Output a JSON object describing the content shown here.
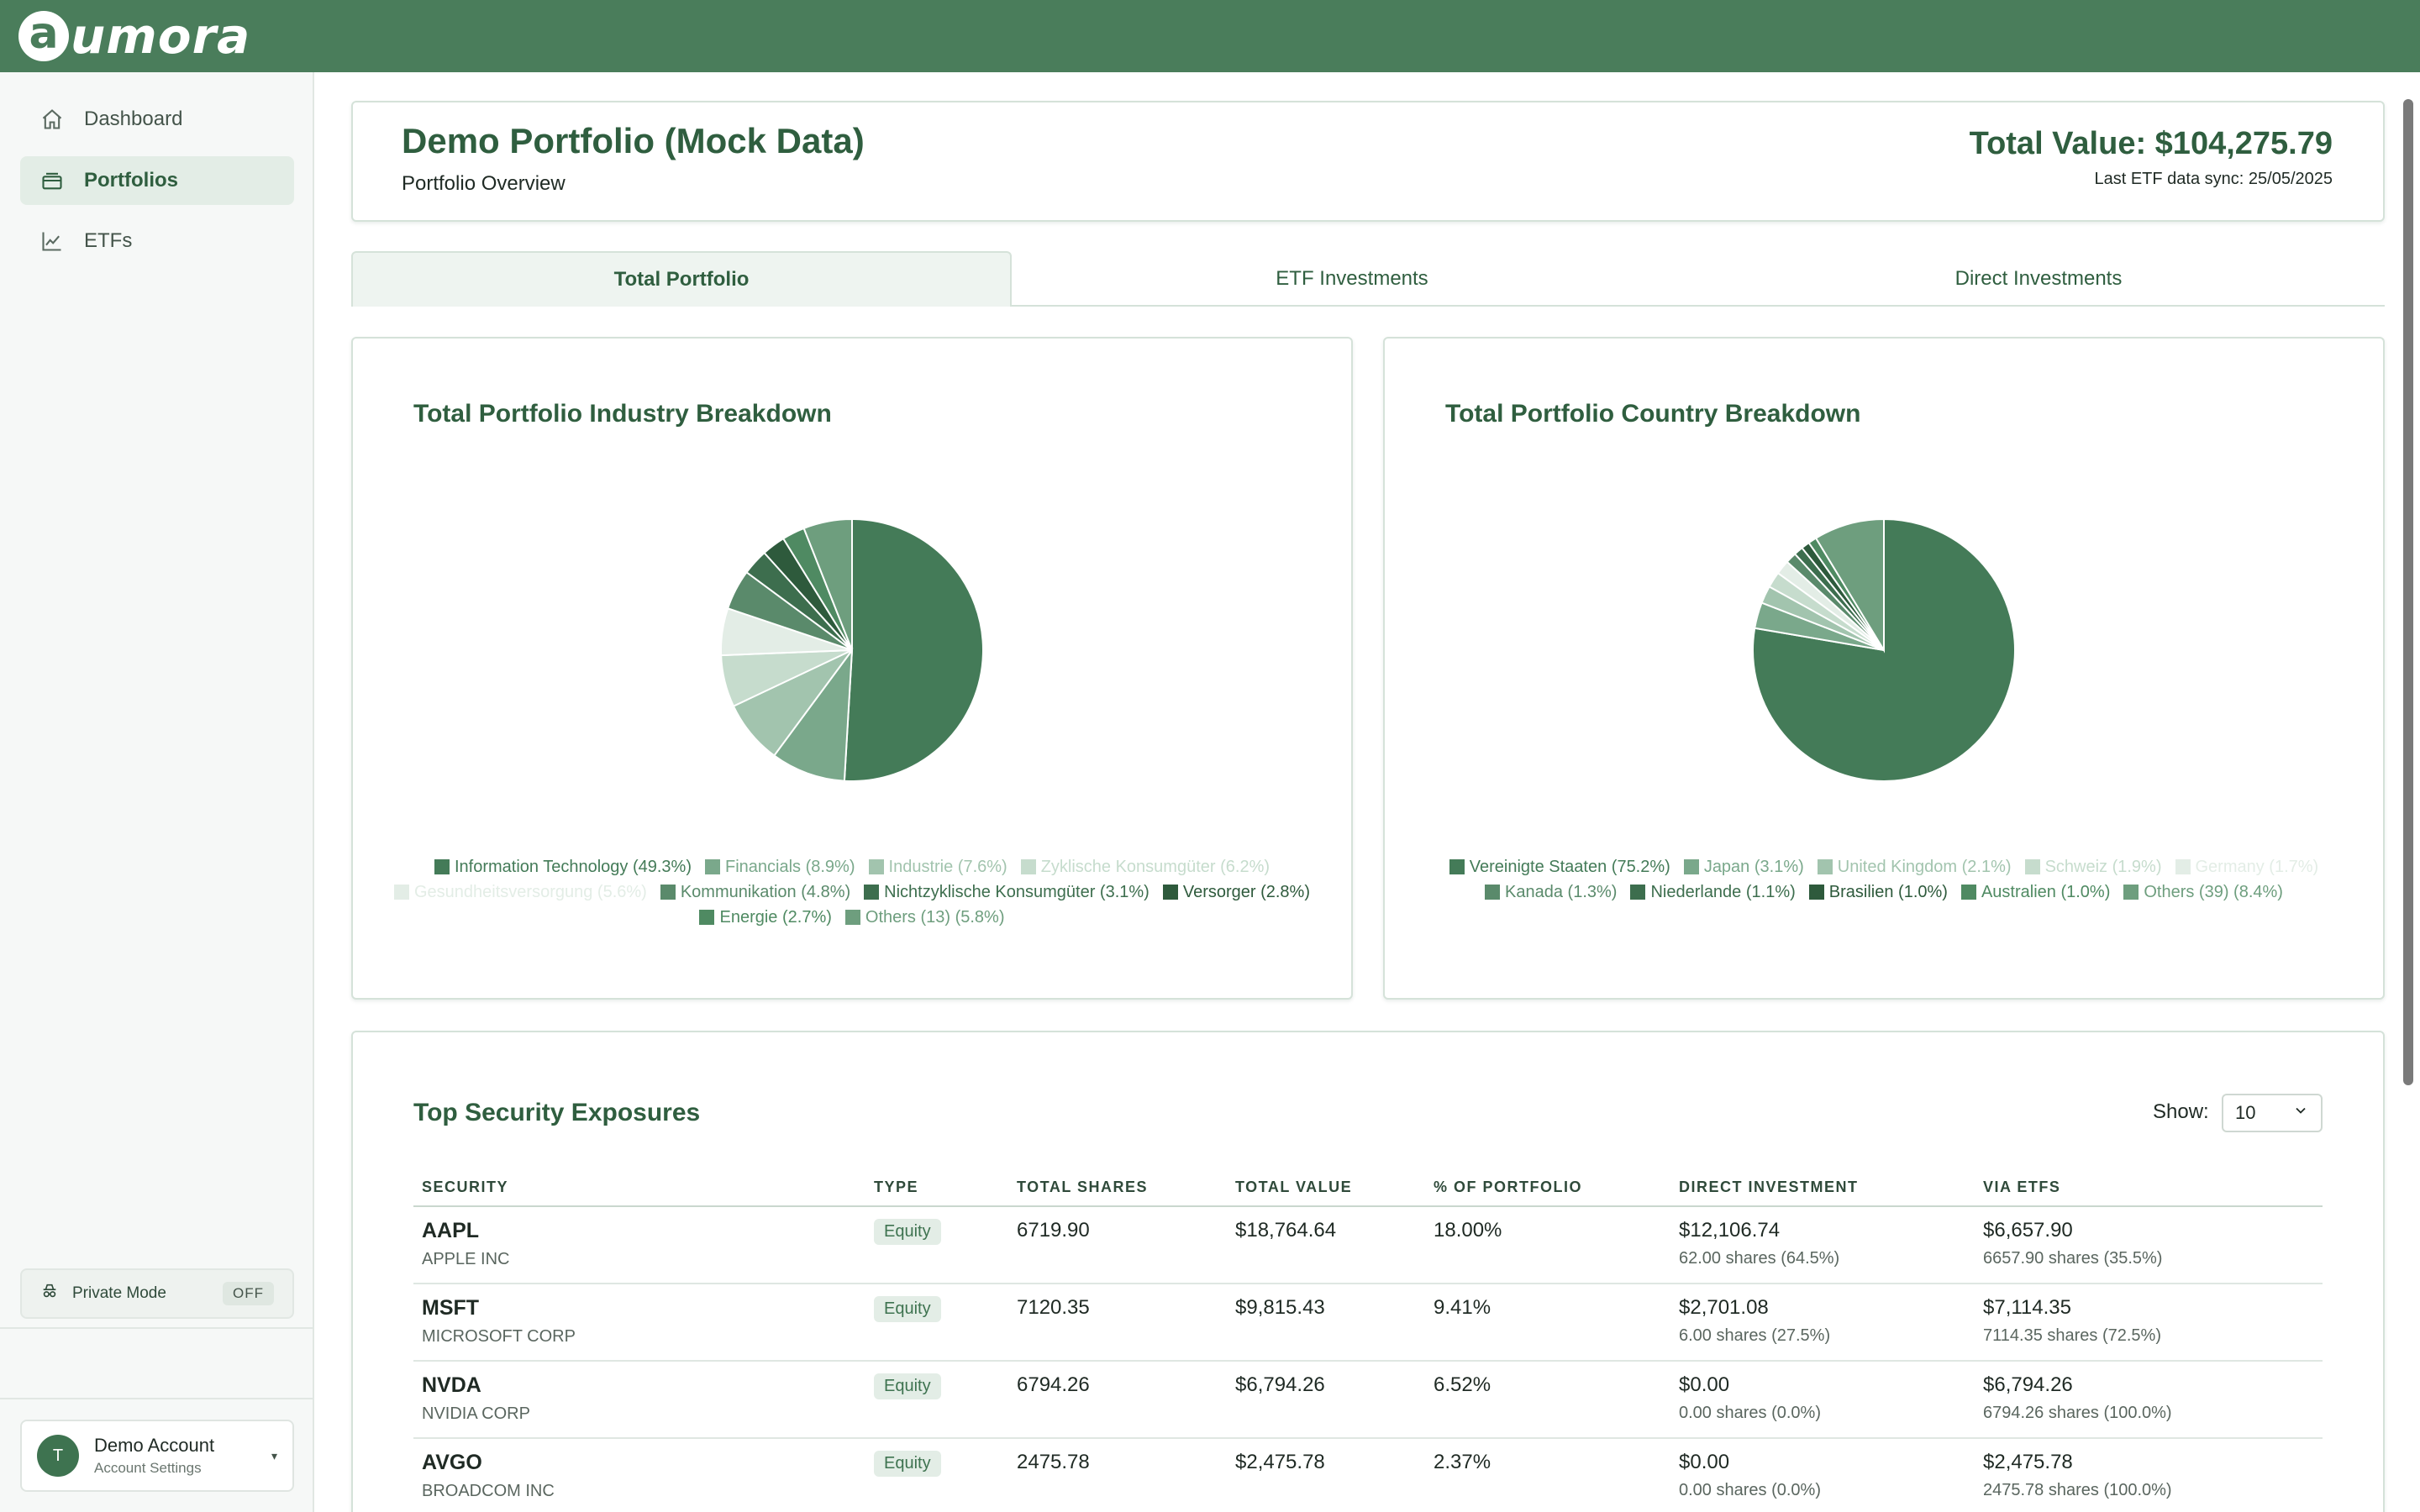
{
  "app": {
    "logo_letter": "a",
    "logo_text": "umora"
  },
  "sidebar": {
    "items": [
      {
        "label": "Dashboard",
        "icon": "home-icon",
        "active": false
      },
      {
        "label": "Portfolios",
        "icon": "briefcase-icon",
        "active": true
      },
      {
        "label": "ETFs",
        "icon": "chart-line-icon",
        "active": false
      }
    ],
    "private_mode": {
      "label": "Private Mode",
      "state": "OFF",
      "icon": "incognito-icon"
    },
    "account": {
      "initial": "T",
      "name": "Demo Account",
      "sub": "Account Settings",
      "caret": "▾"
    }
  },
  "header": {
    "title": "Demo Portfolio (Mock Data)",
    "subtitle": "Portfolio Overview",
    "total_value": "Total Value: $104,275.79",
    "last_sync": "Last ETF data sync: 25/05/2025"
  },
  "tabs": [
    {
      "label": "Total Portfolio",
      "active": true
    },
    {
      "label": "ETF Investments",
      "active": false
    },
    {
      "label": "Direct Investments",
      "active": false
    }
  ],
  "charts": {
    "industry_title": "Total Portfolio Industry Breakdown",
    "country_title": "Total Portfolio Country Breakdown"
  },
  "chart_data": [
    {
      "type": "pie",
      "title": "Total Portfolio Industry Breakdown",
      "labels": [
        "Information Technology (49.3%)",
        "Financials (8.9%)",
        "Industrie (7.6%)",
        "Zyklische Konsumgüter  (6.2%)",
        "Gesundheitsversorgung (5.6%)",
        "Kommunikation (4.8%)",
        "Nichtzyklische Konsumgüter (3.1%)",
        "Versorger (2.8%)",
        "Energie (2.7%)",
        "Others (13) (5.8%)"
      ],
      "values": [
        49.3,
        8.9,
        7.6,
        6.2,
        5.6,
        4.8,
        3.1,
        2.8,
        2.7,
        5.8
      ],
      "colors": [
        "#447b58",
        "#7aa88b",
        "#a2c4ae",
        "#c6dccd",
        "#e3ede6",
        "#5a8a6b",
        "#3d6e4e",
        "#2e5a3c",
        "#4f8a62",
        "#6e9e7e"
      ],
      "legend_placement": "bottom"
    },
    {
      "type": "pie",
      "title": "Total Portfolio Country Breakdown",
      "labels": [
        "Vereinigte Staaten (75.2%)",
        "Japan (3.1%)",
        "United Kingdom (2.1%)",
        "Schweiz (1.9%)",
        "Germany (1.7%)",
        "Kanada (1.3%)",
        "Niederlande (1.1%)",
        "Brasilien (1.0%)",
        "Australien (1.0%)",
        "Others (39) (8.4%)"
      ],
      "values": [
        75.2,
        3.1,
        2.1,
        1.9,
        1.7,
        1.3,
        1.1,
        1.0,
        1.0,
        8.4
      ],
      "colors": [
        "#447b58",
        "#7aa88b",
        "#a2c4ae",
        "#c6dccd",
        "#e3ede6",
        "#5a8a6b",
        "#3d6e4e",
        "#2e5a3c",
        "#4f8a62",
        "#6e9e7e"
      ],
      "legend_placement": "bottom"
    }
  ],
  "exposures": {
    "title": "Top Security Exposures",
    "show_label": "Show:",
    "show_value": "10",
    "columns": [
      "SECURITY",
      "TYPE",
      "TOTAL SHARES",
      "TOTAL VALUE",
      "% OF PORTFOLIO",
      "DIRECT INVESTMENT",
      "VIA ETFS"
    ],
    "rows": [
      {
        "symbol": "AAPL",
        "name": "APPLE INC",
        "type": "Equity",
        "shares": "6719.90",
        "value": "$18,764.64",
        "pct": "18.00%",
        "direct": "$12,106.74",
        "direct_sub": "62.00 shares (64.5%)",
        "etf": "$6,657.90",
        "etf_sub": "6657.90 shares (35.5%)"
      },
      {
        "symbol": "MSFT",
        "name": "MICROSOFT CORP",
        "type": "Equity",
        "shares": "7120.35",
        "value": "$9,815.43",
        "pct": "9.41%",
        "direct": "$2,701.08",
        "direct_sub": "6.00 shares (27.5%)",
        "etf": "$7,114.35",
        "etf_sub": "7114.35 shares (72.5%)"
      },
      {
        "symbol": "NVDA",
        "name": "NVIDIA CORP",
        "type": "Equity",
        "shares": "6794.26",
        "value": "$6,794.26",
        "pct": "6.52%",
        "direct": "$0.00",
        "direct_sub": "0.00 shares (0.0%)",
        "etf": "$6,794.26",
        "etf_sub": "6794.26 shares (100.0%)"
      },
      {
        "symbol": "AVGO",
        "name": "BROADCOM INC",
        "type": "Equity",
        "shares": "2475.78",
        "value": "$2,475.78",
        "pct": "2.37%",
        "direct": "$0.00",
        "direct_sub": "0.00 shares (0.0%)",
        "etf": "$2,475.78",
        "etf_sub": "2475.78 shares (100.0%)"
      }
    ]
  }
}
